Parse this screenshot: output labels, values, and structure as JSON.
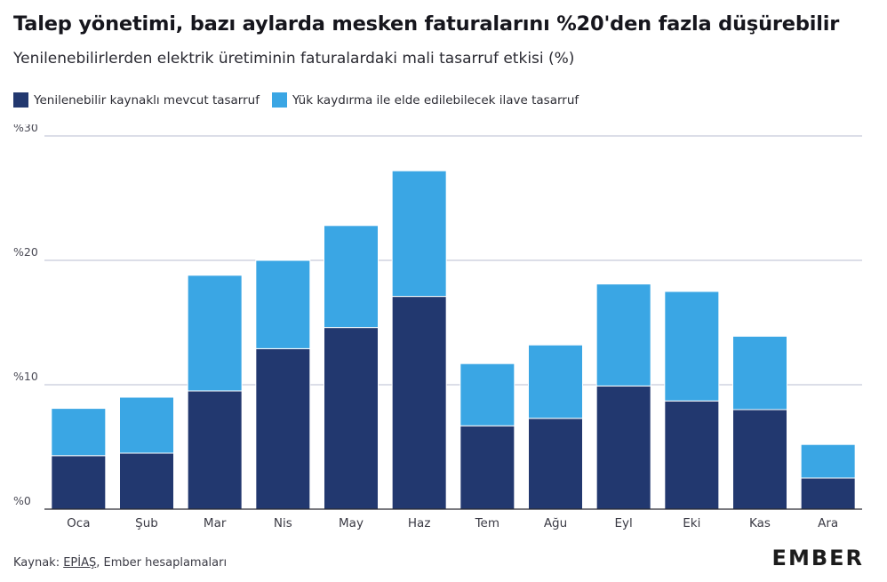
{
  "header": {
    "title": "Talep yönetimi, bazı aylarda mesken faturalarını %20'den fazla düşürebilir",
    "subtitle": "Yenilenebilirlerden elektrik üretiminin faturalardaki mali tasarruf etkisi (%)"
  },
  "legend": {
    "items": [
      {
        "label": "Yenilenebilir kaynaklı mevcut tasarruf",
        "color": "#22386f"
      },
      {
        "label": "Yük kaydırma ile elde edilebilecek ilave tasarruf",
        "color": "#3aa6e4"
      }
    ]
  },
  "chart_data": {
    "type": "bar",
    "stacked": true,
    "categories": [
      "Oca",
      "Şub",
      "Mar",
      "Nis",
      "May",
      "Haz",
      "Tem",
      "Ağu",
      "Eyl",
      "Eki",
      "Kas",
      "Ara"
    ],
    "series": [
      {
        "name": "Yenilenebilir kaynaklı mevcut tasarruf",
        "color": "#22386f",
        "values": [
          4.3,
          4.5,
          9.5,
          12.9,
          14.6,
          17.1,
          6.7,
          7.3,
          9.9,
          8.7,
          8.0,
          2.5
        ]
      },
      {
        "name": "Yük kaydırma ile elde edilebilecek ilave tasarruf",
        "color": "#3aa6e4",
        "values": [
          3.8,
          4.5,
          9.3,
          7.1,
          8.2,
          10.1,
          5.0,
          5.9,
          8.2,
          8.8,
          5.9,
          2.7
        ]
      }
    ],
    "ylim": [
      0,
      30
    ],
    "yticks": [
      0,
      10,
      20,
      30
    ],
    "ytick_labels": [
      "%0",
      "%10",
      "%20",
      "%30"
    ],
    "grid": true,
    "legend_position": "top-left"
  },
  "footer": {
    "source_prefix": "Kaynak: ",
    "source_link": "EPİAŞ",
    "source_suffix": ", Ember hesaplamaları",
    "logo_text": "EMBER"
  }
}
